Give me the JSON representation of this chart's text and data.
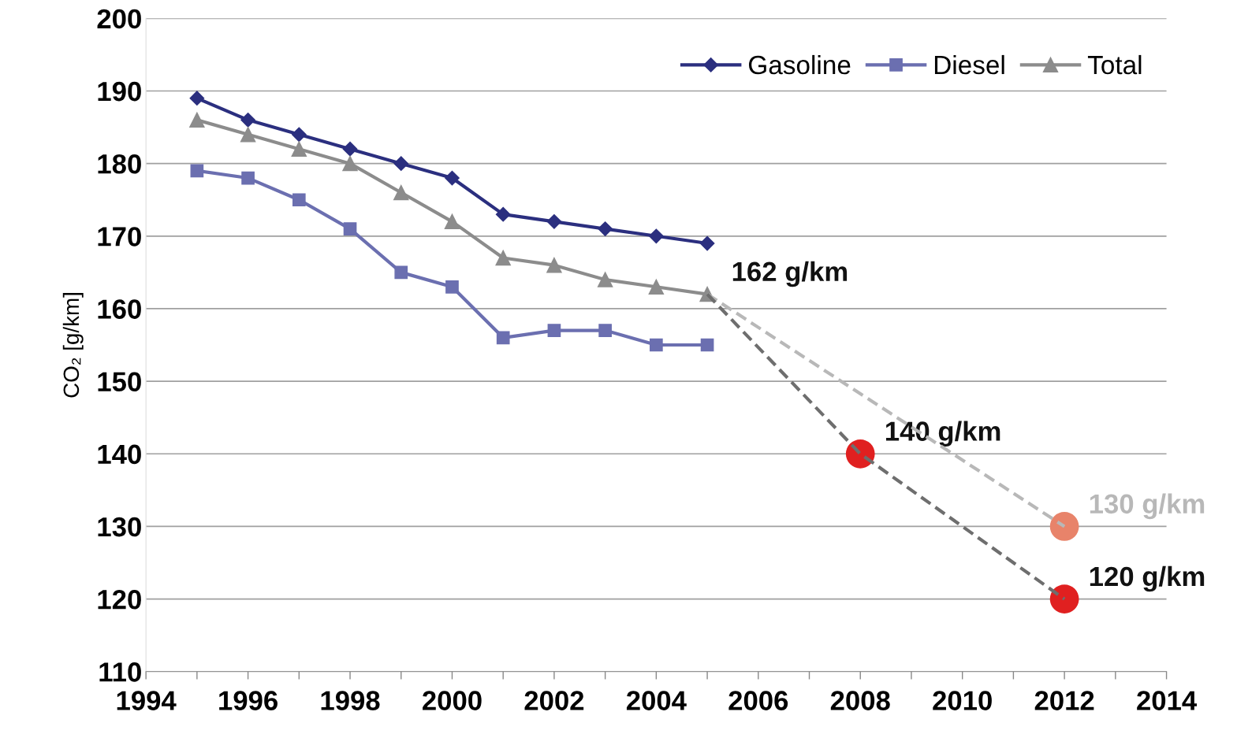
{
  "chart_data": {
    "type": "line",
    "ylabel": "CO₂ [g/km]",
    "x": [
      1995,
      1996,
      1997,
      1998,
      1999,
      2000,
      2001,
      2002,
      2003,
      2004,
      2005
    ],
    "series": [
      {
        "name": "Gasoline",
        "color": "#2b2f7f",
        "marker": "diamond",
        "values": [
          189,
          186,
          184,
          182,
          180,
          178,
          173,
          172,
          171,
          170,
          169
        ]
      },
      {
        "name": "Diesel",
        "color": "#6b6fb0",
        "marker": "square",
        "values": [
          179,
          178,
          175,
          171,
          165,
          163,
          156,
          157,
          157,
          155,
          155
        ]
      },
      {
        "name": "Total",
        "color": "#8c8c8c",
        "marker": "triangle",
        "values": [
          186,
          184,
          182,
          180,
          176,
          172,
          167,
          166,
          164,
          163,
          162
        ]
      },
      {
        "type": "line",
        "color": "#b8b8b8",
        "line_style": "dashed",
        "marker": "none",
        "x": [
          2005,
          2012
        ],
        "values": [
          162,
          130
        ],
        "value_labels": [
          null,
          "130 g/km"
        ]
      },
      {
        "type": "line",
        "color": "#6e6e6e",
        "line_style": "dashed",
        "marker": "none",
        "x": [
          2005,
          2008,
          2012
        ],
        "values": [
          162,
          140,
          120
        ]
      },
      {
        "type": "scatter",
        "color": "#e8836a",
        "marker": "circle",
        "x": [
          2012
        ],
        "values": [
          130
        ]
      },
      {
        "type": "scatter",
        "color": "#e02020",
        "marker": "circle",
        "x": [
          2008,
          2012
        ],
        "values": [
          140,
          120
        ]
      }
    ],
    "annotations": [
      {
        "text": "162 g/km",
        "x": 2005,
        "y": 162
      },
      {
        "text": "140 g/km",
        "x": 2008,
        "y": 140
      },
      {
        "text": "120 g/km",
        "x": 2012,
        "y": 120
      }
    ],
    "xlim": [
      1994,
      2014
    ],
    "xticks": [
      1994,
      {
        "value": 1995,
        "label": null
      },
      1996,
      {
        "value": 1997,
        "label": null
      },
      1998,
      {
        "value": 1999,
        "label": null
      },
      2000,
      {
        "value": 2001,
        "label": null
      },
      2002,
      {
        "value": 2003,
        "label": null
      },
      2004,
      {
        "value": 2005,
        "label": null
      },
      2006,
      {
        "value": 2007,
        "label": null
      },
      2008,
      {
        "value": 2009,
        "label": null
      },
      2010,
      {
        "value": 2011,
        "label": null
      },
      2012,
      {
        "value": 2013,
        "label": null
      },
      2014
    ],
    "ylim": [
      110,
      200
    ],
    "yticks": [
      110,
      120,
      130,
      140,
      150,
      160,
      170,
      180,
      190,
      200
    ],
    "grid": "y",
    "legend": "top right"
  }
}
